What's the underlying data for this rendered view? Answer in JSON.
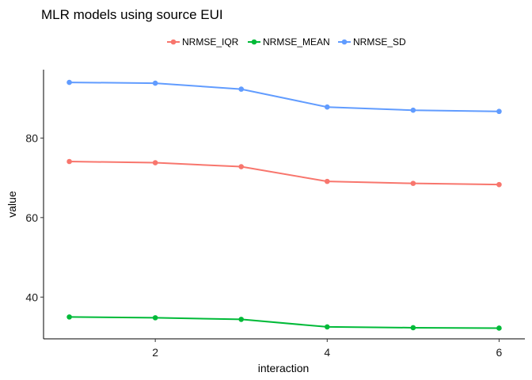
{
  "chart_data": {
    "type": "line",
    "title": "MLR models using source EUI",
    "xlabel": "interaction",
    "ylabel": "value",
    "x": [
      1,
      2,
      3,
      4,
      5,
      6
    ],
    "xticks": [
      2,
      4,
      6
    ],
    "yticks": [
      40,
      60,
      80
    ],
    "xlim": [
      0.7,
      6.3
    ],
    "ylim": [
      29.5,
      97.2
    ],
    "grid": false,
    "legend_position": "top",
    "series": [
      {
        "name": "NRMSE_IQR",
        "color": "#F8766D",
        "values": [
          74.1,
          73.8,
          72.8,
          69.1,
          68.6,
          68.3
        ]
      },
      {
        "name": "NRMSE_MEAN",
        "color": "#00BA38",
        "values": [
          35.0,
          34.8,
          34.4,
          32.5,
          32.3,
          32.2
        ]
      },
      {
        "name": "NRMSE_SD",
        "color": "#619CFF",
        "values": [
          94.0,
          93.8,
          92.3,
          87.8,
          87.0,
          86.7
        ]
      }
    ]
  }
}
